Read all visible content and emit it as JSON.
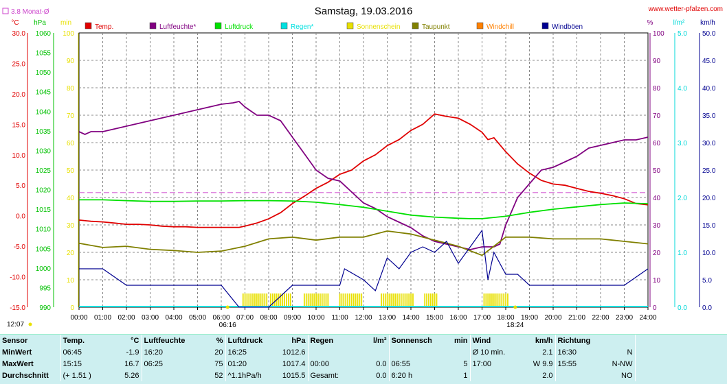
{
  "title": "Samstag, 19.03.2016",
  "source": "www.wetter-pfalzen.com",
  "monat_label": "3.8 Monat-Ø",
  "start_time": "12:07",
  "colors": {
    "temp": "#e00000",
    "hum": "#800080",
    "press": "#00e000",
    "rain": "#00e0e0",
    "sun": "#e8e000",
    "dew": "#808000",
    "windchill": "#ff8000",
    "gust": "#000090",
    "monat": "#cc44cc"
  },
  "chart_data": {
    "type": "line",
    "title": "Samstag, 19.03.2016",
    "x_ticks": [
      "00:00",
      "01:00",
      "02:00",
      "03:00",
      "04:00",
      "05:00",
      "06:00",
      "07:00",
      "08:00",
      "09:00",
      "10:00",
      "11:00",
      "12:00",
      "13:00",
      "14:00",
      "15:00",
      "16:00",
      "17:00",
      "18:00",
      "19:00",
      "20:00",
      "21:00",
      "22:00",
      "23:00",
      "24:00"
    ],
    "axes": {
      "temp": {
        "unit": "°C",
        "range": [
          -15,
          30
        ],
        "ticks": [
          "30.0",
          "25.0",
          "20.0",
          "15.0",
          "10.0",
          "5.0",
          "0.0",
          "-5.0",
          "-10.0",
          "-15.0"
        ]
      },
      "press": {
        "unit": "hPa",
        "range": [
          990,
          1060
        ],
        "ticks": [
          "1060",
          "1055",
          "1050",
          "1045",
          "1040",
          "1035",
          "1030",
          "1025",
          "1020",
          "1015",
          "1010",
          "1005",
          "1000",
          "995",
          "990"
        ]
      },
      "sun": {
        "unit": "min",
        "range": [
          0,
          100
        ],
        "ticks": [
          "100",
          "90",
          "80",
          "70",
          "60",
          "50",
          "40",
          "30",
          "20",
          "10",
          "0"
        ]
      },
      "hum": {
        "unit": "%",
        "range": [
          0,
          100
        ],
        "ticks": [
          "100",
          "90",
          "80",
          "70",
          "60",
          "50",
          "40",
          "30",
          "20",
          "10",
          "0"
        ]
      },
      "rain": {
        "unit": "l/m²",
        "range": [
          0,
          5
        ],
        "ticks": [
          "5.0",
          "4.0",
          "3.0",
          "2.0",
          "1.0",
          "0.0"
        ]
      },
      "wind": {
        "unit": "km/h",
        "range": [
          0,
          50
        ],
        "ticks": [
          "50.0",
          "45.0",
          "40.0",
          "35.0",
          "30.0",
          "25.0",
          "20.0",
          "15.0",
          "10.0",
          "5.0",
          "0.0"
        ]
      }
    },
    "legend": [
      "Temp.",
      "Luftfeuchte*",
      "Luftdruck",
      "Regen*",
      "Sonnenschein",
      "Taupunkt",
      "Windchill",
      "Windböen"
    ],
    "monat_avg_temp": 3.8,
    "sunrise": "06:16",
    "sunset": "18:24",
    "series": [
      {
        "name": "Temp.",
        "axis": "temp",
        "points": [
          [
            0,
            -0.7
          ],
          [
            0.5,
            -0.9
          ],
          [
            1,
            -1.0
          ],
          [
            1.5,
            -1.2
          ],
          [
            2,
            -1.4
          ],
          [
            2.5,
            -1.4
          ],
          [
            3,
            -1.5
          ],
          [
            3.5,
            -1.7
          ],
          [
            4,
            -1.8
          ],
          [
            4.5,
            -1.8
          ],
          [
            5,
            -1.9
          ],
          [
            5.5,
            -1.9
          ],
          [
            6,
            -1.9
          ],
          [
            6.5,
            -1.9
          ],
          [
            6.75,
            -1.9
          ],
          [
            7,
            -1.7
          ],
          [
            7.5,
            -1.2
          ],
          [
            8,
            -0.5
          ],
          [
            8.5,
            0.5
          ],
          [
            9,
            2.0
          ],
          [
            9.5,
            3.2
          ],
          [
            10,
            4.5
          ],
          [
            10.5,
            5.5
          ],
          [
            11,
            6.8
          ],
          [
            11.5,
            7.5
          ],
          [
            12,
            9.0
          ],
          [
            12.5,
            10.0
          ],
          [
            13,
            11.5
          ],
          [
            13.5,
            12.5
          ],
          [
            14,
            14.0
          ],
          [
            14.25,
            14.5
          ],
          [
            14.5,
            15.0
          ],
          [
            15,
            16.7
          ],
          [
            15.5,
            16.3
          ],
          [
            16,
            16.0
          ],
          [
            16.5,
            15.0
          ],
          [
            17,
            13.7
          ],
          [
            17.25,
            12.5
          ],
          [
            17.5,
            12.8
          ],
          [
            18,
            10.5
          ],
          [
            18.5,
            8.5
          ],
          [
            19,
            7.0
          ],
          [
            19.5,
            5.8
          ],
          [
            20,
            5.2
          ],
          [
            20.5,
            5.0
          ],
          [
            21,
            4.5
          ],
          [
            21.5,
            4.0
          ],
          [
            22,
            3.7
          ],
          [
            22.5,
            3.3
          ],
          [
            23,
            2.8
          ],
          [
            23.5,
            2.0
          ],
          [
            24,
            1.8
          ]
        ]
      },
      {
        "name": "Luftfeuchte*",
        "axis": "hum",
        "points": [
          [
            0,
            64
          ],
          [
            0.25,
            63
          ],
          [
            0.5,
            64
          ],
          [
            1,
            64
          ],
          [
            1.5,
            65
          ],
          [
            2,
            66
          ],
          [
            2.5,
            67
          ],
          [
            3,
            68
          ],
          [
            3.5,
            69
          ],
          [
            4,
            70
          ],
          [
            4.5,
            71
          ],
          [
            5,
            72
          ],
          [
            5.5,
            73
          ],
          [
            6,
            74
          ],
          [
            6.5,
            74.5
          ],
          [
            6.75,
            75
          ],
          [
            7,
            73
          ],
          [
            7.5,
            70
          ],
          [
            8,
            70
          ],
          [
            8.5,
            68
          ],
          [
            9,
            62
          ],
          [
            9.5,
            56
          ],
          [
            10,
            50
          ],
          [
            10.5,
            47
          ],
          [
            11,
            46
          ],
          [
            11.5,
            42
          ],
          [
            12,
            38
          ],
          [
            12.5,
            36
          ],
          [
            13,
            33
          ],
          [
            13.5,
            31
          ],
          [
            14,
            29
          ],
          [
            14.5,
            26
          ],
          [
            15,
            24
          ],
          [
            15.5,
            23
          ],
          [
            16,
            22
          ],
          [
            16.5,
            21
          ],
          [
            17,
            22
          ],
          [
            17.5,
            22
          ],
          [
            17.75,
            23
          ],
          [
            18,
            30
          ],
          [
            18.5,
            40
          ],
          [
            19,
            45
          ],
          [
            19.5,
            50
          ],
          [
            20,
            51
          ],
          [
            20.5,
            53
          ],
          [
            21,
            55
          ],
          [
            21.5,
            58
          ],
          [
            22,
            59
          ],
          [
            22.5,
            60
          ],
          [
            23,
            61
          ],
          [
            23.5,
            61
          ],
          [
            24,
            62
          ]
        ]
      },
      {
        "name": "Luftdruck",
        "axis": "press",
        "points": [
          [
            0,
            1017.4
          ],
          [
            1,
            1017.4
          ],
          [
            2,
            1017.2
          ],
          [
            3,
            1017.0
          ],
          [
            4,
            1017.0
          ],
          [
            5,
            1017.1
          ],
          [
            6,
            1017.1
          ],
          [
            7,
            1017.2
          ],
          [
            8,
            1017.2
          ],
          [
            9,
            1017.1
          ],
          [
            10,
            1016.8
          ],
          [
            11,
            1016.2
          ],
          [
            12,
            1015.5
          ],
          [
            13,
            1014.5
          ],
          [
            14,
            1013.5
          ],
          [
            15,
            1013.0
          ],
          [
            16,
            1012.7
          ],
          [
            16.5,
            1012.6
          ],
          [
            17,
            1012.6
          ],
          [
            18,
            1013.2
          ],
          [
            19,
            1014.2
          ],
          [
            20,
            1015.0
          ],
          [
            21,
            1015.6
          ],
          [
            22,
            1016.2
          ],
          [
            23,
            1016.6
          ],
          [
            24,
            1016.4
          ]
        ]
      },
      {
        "name": "Taupunkt",
        "axis": "temp",
        "points": [
          [
            0,
            -4.5
          ],
          [
            1,
            -5.2
          ],
          [
            2,
            -5.0
          ],
          [
            3,
            -5.5
          ],
          [
            4,
            -5.7
          ],
          [
            5,
            -6.0
          ],
          [
            6,
            -5.8
          ],
          [
            7,
            -5.0
          ],
          [
            8,
            -3.8
          ],
          [
            9,
            -3.5
          ],
          [
            10,
            -4.0
          ],
          [
            11,
            -3.5
          ],
          [
            12,
            -3.5
          ],
          [
            13,
            -2.5
          ],
          [
            14,
            -3.0
          ],
          [
            15,
            -4.0
          ],
          [
            16,
            -5.0
          ],
          [
            17,
            -6.5
          ],
          [
            17.5,
            -5.0
          ],
          [
            18,
            -3.5
          ],
          [
            19,
            -3.5
          ],
          [
            20,
            -3.8
          ],
          [
            21,
            -3.8
          ],
          [
            22,
            -3.8
          ],
          [
            23,
            -4.2
          ],
          [
            24,
            -4.6
          ]
        ]
      },
      {
        "name": "Windböen",
        "axis": "wind",
        "points": [
          [
            0,
            7
          ],
          [
            1,
            7
          ],
          [
            2,
            4
          ],
          [
            3,
            4
          ],
          [
            4,
            4
          ],
          [
            5,
            4
          ],
          [
            6,
            4
          ],
          [
            6.75,
            0
          ],
          [
            7,
            0
          ],
          [
            8,
            0
          ],
          [
            9,
            4
          ],
          [
            10,
            4
          ],
          [
            11,
            4
          ],
          [
            11.2,
            7
          ],
          [
            12,
            5
          ],
          [
            12.5,
            3
          ],
          [
            13,
            9
          ],
          [
            13.5,
            7
          ],
          [
            14,
            10
          ],
          [
            14.5,
            11
          ],
          [
            15,
            10
          ],
          [
            15.5,
            12
          ],
          [
            16,
            8
          ],
          [
            16.5,
            11
          ],
          [
            17,
            14
          ],
          [
            17.25,
            5
          ],
          [
            17.5,
            10
          ],
          [
            18,
            6
          ],
          [
            18.5,
            6
          ],
          [
            19,
            4
          ],
          [
            20,
            4
          ],
          [
            21,
            4
          ],
          [
            22,
            4
          ],
          [
            23,
            4
          ],
          [
            24,
            7
          ]
        ]
      }
    ],
    "sunshine": {
      "axis": "sun",
      "intervals": [
        [
          "06:55",
          "07:55"
        ],
        [
          "08:05",
          "08:55"
        ],
        [
          "09:30",
          "10:30"
        ],
        [
          "11:00",
          "11:55"
        ],
        [
          "12:45",
          "13:25"
        ],
        [
          "13:30",
          "14:05"
        ],
        [
          "14:35",
          "15:05"
        ],
        [
          "17:05",
          "18:05"
        ]
      ],
      "value_min": 5
    }
  },
  "stats": {
    "header": {
      "sensor": "Sensor",
      "temp": "Temp.",
      "temp_unit": "°C",
      "hum": "Luftfeuchte",
      "hum_unit": "%",
      "press": "Luftdruck",
      "press_unit": "hPa",
      "rain": "Regen",
      "rain_unit": "l/m²",
      "sun": "Sonnenschein",
      "sun_unit": "min",
      "wind": "Wind",
      "wind_unit": "km/h",
      "dir": "Richtung"
    },
    "rows": [
      {
        "label": "MinWert",
        "temp_time": "06:45",
        "temp": "-1.9",
        "hum_time": "16:20",
        "hum": "20",
        "press_time": "16:25",
        "press": "1012.6",
        "rain_time": "",
        "rain": "",
        "sun_time": "",
        "sun": "",
        "wind_time": "Ø 10 min.",
        "wind": "2.1",
        "dir_time": "16:30",
        "dir": "N"
      },
      {
        "label": "MaxWert",
        "temp_time": "15:15",
        "temp": "16.7",
        "hum_time": "06:25",
        "hum": "75",
        "press_time": "01:20",
        "press": "1017.4",
        "rain_time": "00:00",
        "rain": "0.0",
        "sun_time": "06:55",
        "sun": "5",
        "wind_time": "17:00",
        "wind": "W 9.9",
        "dir_time": "15:55",
        "dir": "N-NW"
      },
      {
        "label": "Durchschnitt",
        "temp_time": "(+ 1.51 )",
        "temp": "5.26",
        "hum_time": "",
        "hum": "52",
        "press_time": "^1.1hPa/h",
        "press": "1015.5",
        "rain_time": "Gesamt:",
        "rain": "0.0",
        "sun_time": "6:20 h",
        "sun": "1",
        "wind_time": "",
        "wind": "2.0",
        "dir_time": "",
        "dir": "NO"
      }
    ]
  }
}
